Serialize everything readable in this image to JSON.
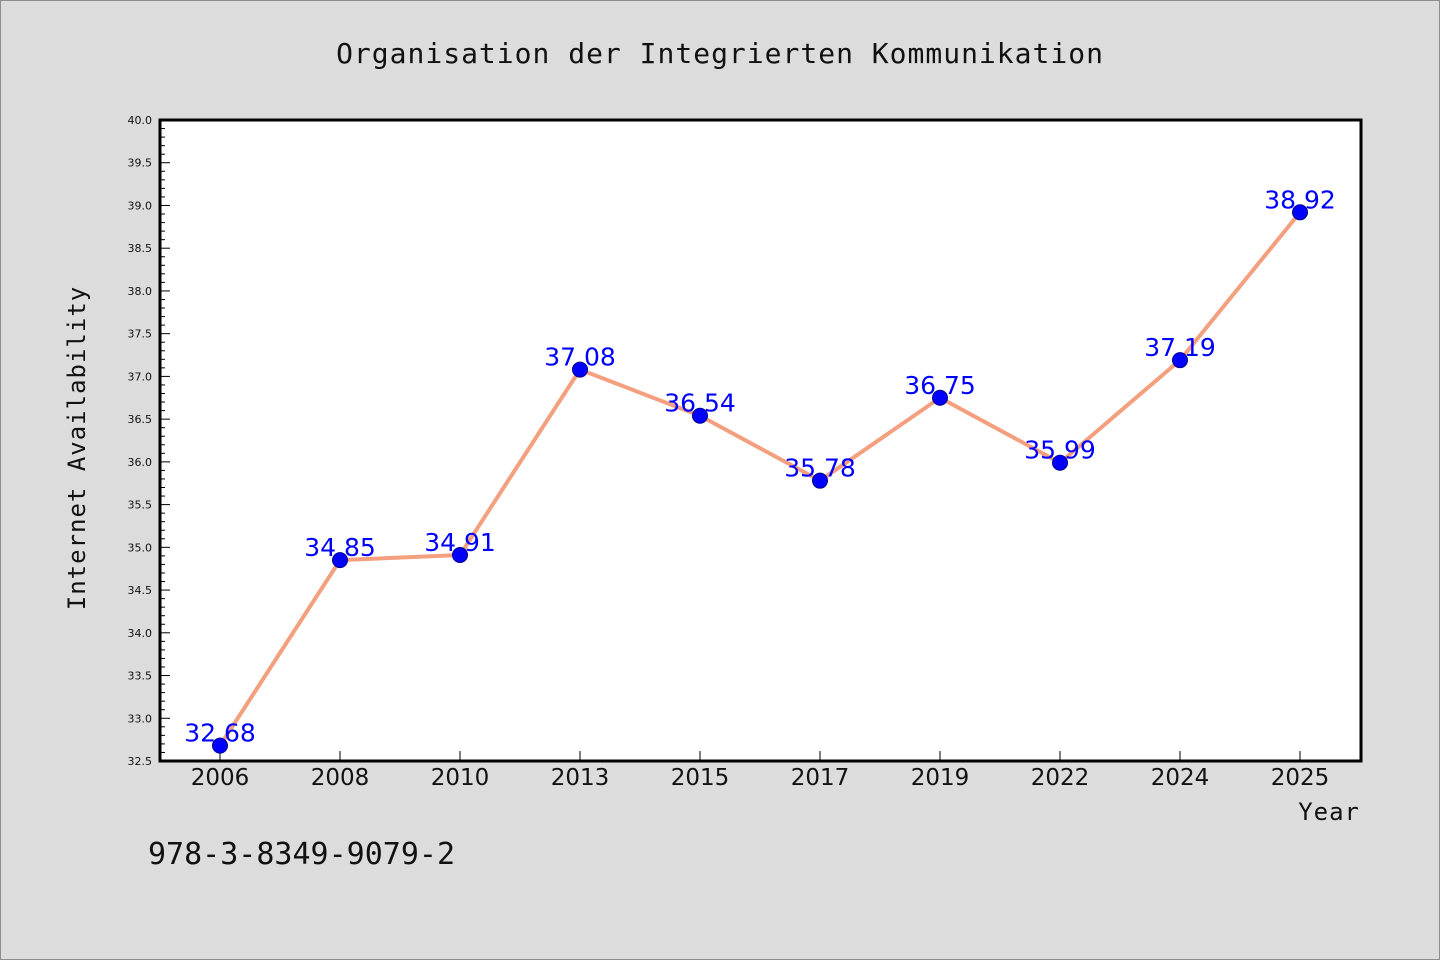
{
  "chart_data": {
    "type": "line",
    "title": "Organisation der Integrierten Kommunikation",
    "xlabel": "Year",
    "ylabel": "Internet Availability",
    "categories": [
      "2006",
      "2008",
      "2010",
      "2013",
      "2015",
      "2017",
      "2019",
      "2022",
      "2024",
      "2025"
    ],
    "series": [
      {
        "values": [
          32.68,
          34.85,
          34.91,
          37.08,
          36.54,
          35.78,
          36.75,
          35.99,
          37.19,
          38.92
        ],
        "line_color": "#f4a07f",
        "marker_color": "#0000ff"
      }
    ],
    "data_labels": [
      "32.68",
      "34.85",
      "34.91",
      "37.08",
      "36.54",
      "35.78",
      "36.75",
      "35.99",
      "37.19",
      "38.92"
    ],
    "ylim": [
      32.5,
      40.0
    ],
    "yticks": [
      "32.5",
      "33.0",
      "33.5",
      "34.0",
      "34.5",
      "35.0",
      "35.5",
      "36.0",
      "36.5",
      "37.0",
      "37.5",
      "38.0",
      "38.5",
      "39.0",
      "39.5",
      "40.0"
    ],
    "grid": false,
    "legend": "none"
  },
  "footer": {
    "isbn": "978-3-8349-9079-2"
  },
  "colors": {
    "background": "#dcdcdc",
    "plot_background": "#ffffff",
    "label_color": "#0000ff"
  }
}
